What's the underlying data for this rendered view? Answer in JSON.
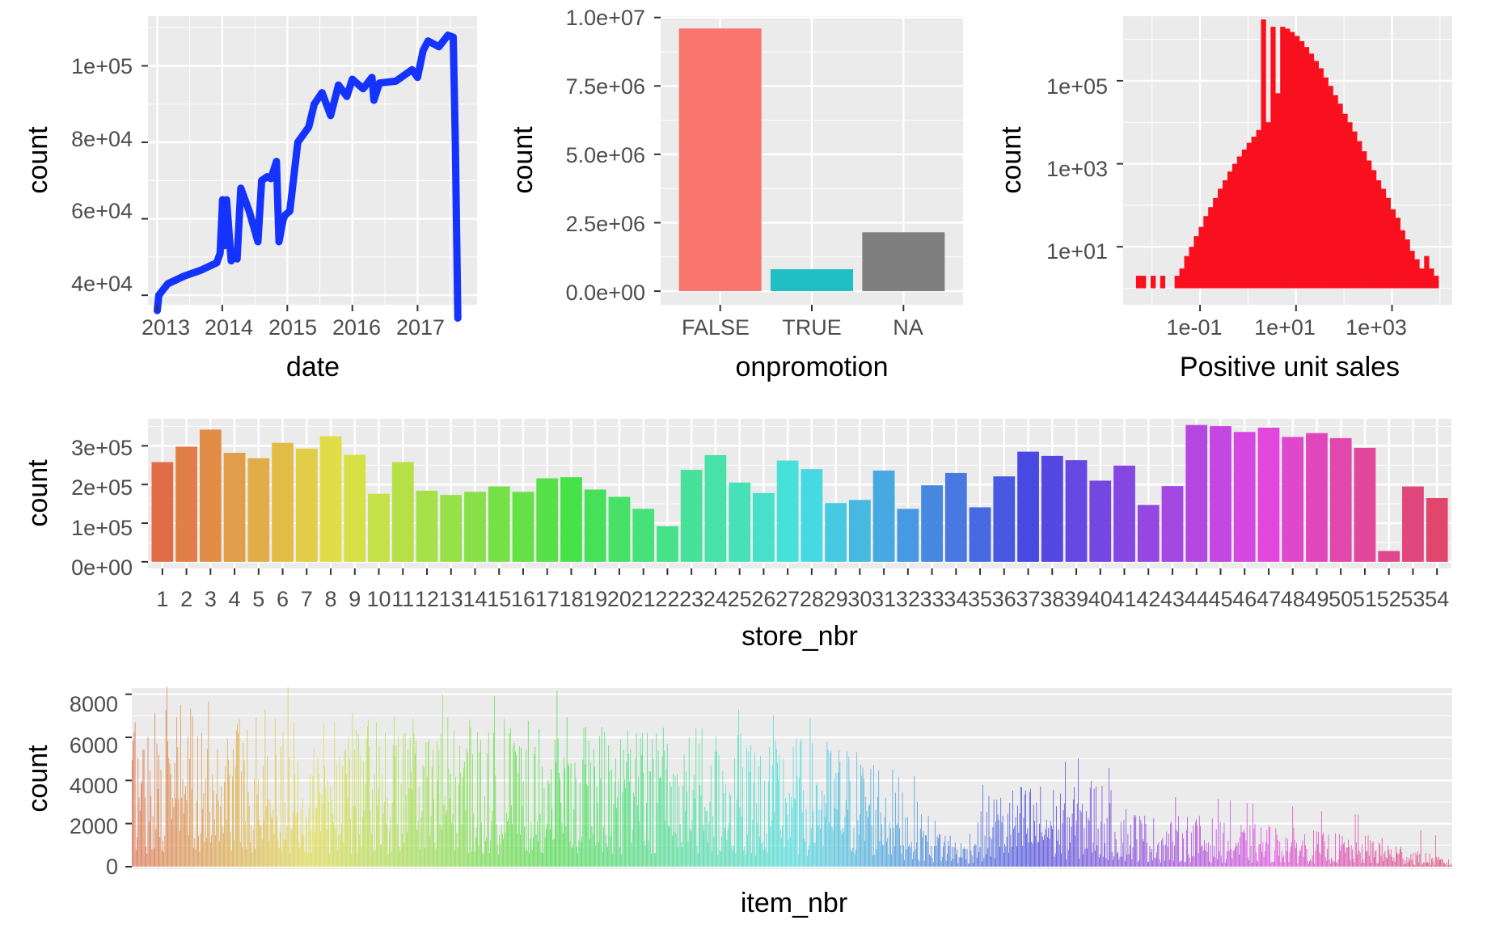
{
  "chart_data": [
    {
      "id": "date",
      "type": "line",
      "xlabel": "date",
      "ylabel": "count",
      "x_tick_labels": [
        "2013",
        "2014",
        "2015",
        "2016",
        "2017"
      ],
      "y_tick_labels": [
        "4e+04",
        "6e+04",
        "8e+04",
        "1e+05"
      ],
      "y_ticks": [
        40000,
        60000,
        80000,
        100000
      ],
      "ylim": [
        37500,
        113000
      ],
      "line_color": "#1433ff",
      "x": [
        "2013-01-01",
        "2013-01-10",
        "2013-03-01",
        "2013-06-01",
        "2013-09-01",
        "2013-12-01",
        "2013-12-20",
        "2014-01-03",
        "2014-01-14",
        "2014-01-25",
        "2014-02-20",
        "2014-03-05",
        "2014-03-25",
        "2014-04-15",
        "2014-06-01",
        "2014-07-20",
        "2014-08-10",
        "2014-08-25",
        "2014-09-10",
        "2014-10-01",
        "2014-11-01",
        "2014-11-15",
        "2014-12-01",
        "2014-12-10",
        "2014-12-20",
        "2015-01-15",
        "2015-03-01",
        "2015-05-01",
        "2015-06-01",
        "2015-07-15",
        "2015-09-01",
        "2015-10-15",
        "2015-12-01",
        "2016-01-01",
        "2016-03-01",
        "2016-04-20",
        "2016-05-01",
        "2016-06-01",
        "2016-09-01",
        "2016-12-01",
        "2017-01-01",
        "2017-02-01",
        "2017-03-01",
        "2017-05-01",
        "2017-06-20",
        "2017-07-20",
        "2017-08-01",
        "2017-08-15"
      ],
      "y": [
        36000,
        40000,
        43000,
        45000,
        46500,
        48500,
        51000,
        65000,
        53000,
        65000,
        49000,
        50000,
        49500,
        68000,
        62000,
        54000,
        70000,
        70500,
        71000,
        70500,
        75000,
        54000,
        58000,
        60000,
        61000,
        62000,
        80000,
        84000,
        90000,
        93000,
        87000,
        95000,
        92000,
        96500,
        94000,
        97000,
        91000,
        95500,
        96000,
        99000,
        97000,
        104000,
        106500,
        105000,
        108000,
        107500,
        80000,
        34000
      ]
    },
    {
      "id": "onpromotion",
      "type": "bar",
      "xlabel": "onpromotion",
      "ylabel": "count",
      "categories": [
        "FALSE",
        "TRUE",
        "NA"
      ],
      "values": [
        9600000,
        800000,
        2150000
      ],
      "colors": [
        "#f8766d",
        "#1fbfc4",
        "#7f7f7f"
      ],
      "y_tick_labels": [
        "0.0e+00",
        "2.5e+06",
        "5.0e+06",
        "7.5e+06",
        "1.0e+07"
      ],
      "y_ticks": [
        0,
        2500000,
        5000000,
        7500000,
        10000000
      ],
      "ylim": [
        -500000,
        10050000
      ]
    },
    {
      "id": "unit_sales",
      "type": "bar",
      "xlabel": "Positive unit sales",
      "ylabel": "count",
      "x_scale": "log10",
      "y_scale": "log10",
      "x_tick_labels": [
        "1e-01",
        "1e+01",
        "1e+03"
      ],
      "x_ticks": [
        0.1,
        10,
        1000
      ],
      "y_tick_labels": [
        "1e+01",
        "1e+03",
        "1e+05"
      ],
      "y_ticks": [
        10,
        1000,
        100000
      ],
      "xlim": [
        0.0025,
        18000
      ],
      "ylim": [
        0.4,
        3600000
      ],
      "bar_color": "#f8101e",
      "bin_centers": [
        0.0052,
        0.0066,
        0.0083,
        0.0105,
        0.0131,
        0.0166,
        0.0209,
        0.0263,
        0.0331,
        0.0417,
        0.0525,
        0.0661,
        0.0832,
        0.105,
        0.132,
        0.166,
        0.209,
        0.263,
        0.331,
        0.417,
        0.525,
        0.661,
        0.832,
        1.05,
        1.32,
        1.66,
        2.09,
        2.63,
        3.31,
        4.17,
        5.25,
        6.61,
        8.32,
        10.5,
        13.2,
        16.6,
        20.9,
        26.3,
        33.1,
        41.7,
        52.5,
        66.1,
        83.2,
        105,
        132,
        166,
        209,
        263,
        331,
        417,
        525,
        661,
        832,
        1050,
        1320,
        1660,
        2090,
        2630,
        3310,
        4170,
        5250,
        6610,
        8320
      ],
      "counts": [
        2,
        2,
        0,
        2,
        0,
        2,
        0,
        0,
        2,
        3,
        6,
        10,
        18,
        30,
        55,
        90,
        150,
        250,
        400,
        650,
        1000,
        1500,
        2200,
        3200,
        4500,
        6500,
        3000000,
        10000,
        2000000,
        50000,
        2000000,
        1800000,
        1500000,
        1200000,
        900000,
        650000,
        450000,
        300000,
        200000,
        120000,
        75000,
        45000,
        28000,
        16000,
        10000,
        6000,
        3500,
        2000,
        1200,
        700,
        400,
        250,
        150,
        80,
        50,
        25,
        15,
        8,
        5,
        3,
        6,
        3,
        2
      ]
    },
    {
      "id": "store_nbr",
      "type": "bar",
      "xlabel": "store_nbr",
      "ylabel": "count",
      "categories": [
        "1",
        "2",
        "3",
        "4",
        "5",
        "6",
        "7",
        "8",
        "9",
        "10",
        "11",
        "12",
        "13",
        "14",
        "15",
        "16",
        "17",
        "18",
        "19",
        "20",
        "21",
        "22",
        "23",
        "24",
        "25",
        "26",
        "27",
        "28",
        "29",
        "30",
        "31",
        "32",
        "33",
        "34",
        "35",
        "36",
        "37",
        "38",
        "39",
        "40",
        "41",
        "42",
        "43",
        "44",
        "45",
        "46",
        "47",
        "48",
        "49",
        "50",
        "51",
        "52",
        "53",
        "54"
      ],
      "values": [
        258000,
        298000,
        342000,
        282000,
        268000,
        308000,
        293000,
        325000,
        277000,
        176000,
        258000,
        184000,
        173000,
        181000,
        195000,
        181000,
        216000,
        219000,
        187000,
        168000,
        137000,
        92000,
        238000,
        276000,
        205000,
        178000,
        262000,
        240000,
        152000,
        160000,
        236000,
        137000,
        198000,
        230000,
        141000,
        221000,
        285000,
        274000,
        263000,
        210000,
        249000,
        147000,
        196000,
        354000,
        351000,
        336000,
        347000,
        323000,
        333000,
        320000,
        295000,
        28000,
        195000,
        165000
      ],
      "y_tick_labels": [
        "0e+00",
        "1e+05",
        "2e+05",
        "3e+05"
      ],
      "y_ticks": [
        0,
        100000,
        200000,
        300000
      ],
      "ylim": [
        -17000,
        370000
      ]
    },
    {
      "id": "item_nbr",
      "type": "bar",
      "xlabel": "item_nbr",
      "ylabel": "count",
      "y_tick_labels": [
        "0",
        "2000",
        "4000",
        "6000",
        "8000"
      ],
      "y_ticks": [
        0,
        2000,
        4000,
        6000,
        8000
      ],
      "ylim": [
        0,
        8400
      ],
      "item_count": 4036,
      "envelope_x": [
        0,
        0.04,
        0.1,
        0.16,
        0.22,
        0.27,
        0.32,
        0.36,
        0.4,
        0.44,
        0.48,
        0.53,
        0.56,
        0.58,
        0.6,
        0.63,
        0.65,
        0.68,
        0.7,
        0.73,
        0.75,
        0.78,
        0.8,
        0.84,
        0.88,
        0.91,
        0.94,
        0.97,
        1.0
      ],
      "envelope_y": [
        7500,
        7800,
        7800,
        7500,
        7200,
        7000,
        7400,
        6600,
        6800,
        6600,
        6200,
        6000,
        5500,
        4400,
        2700,
        1200,
        3500,
        4000,
        3900,
        4400,
        3100,
        2200,
        2500,
        2100,
        1900,
        1600,
        1500,
        950,
        300
      ]
    }
  ]
}
